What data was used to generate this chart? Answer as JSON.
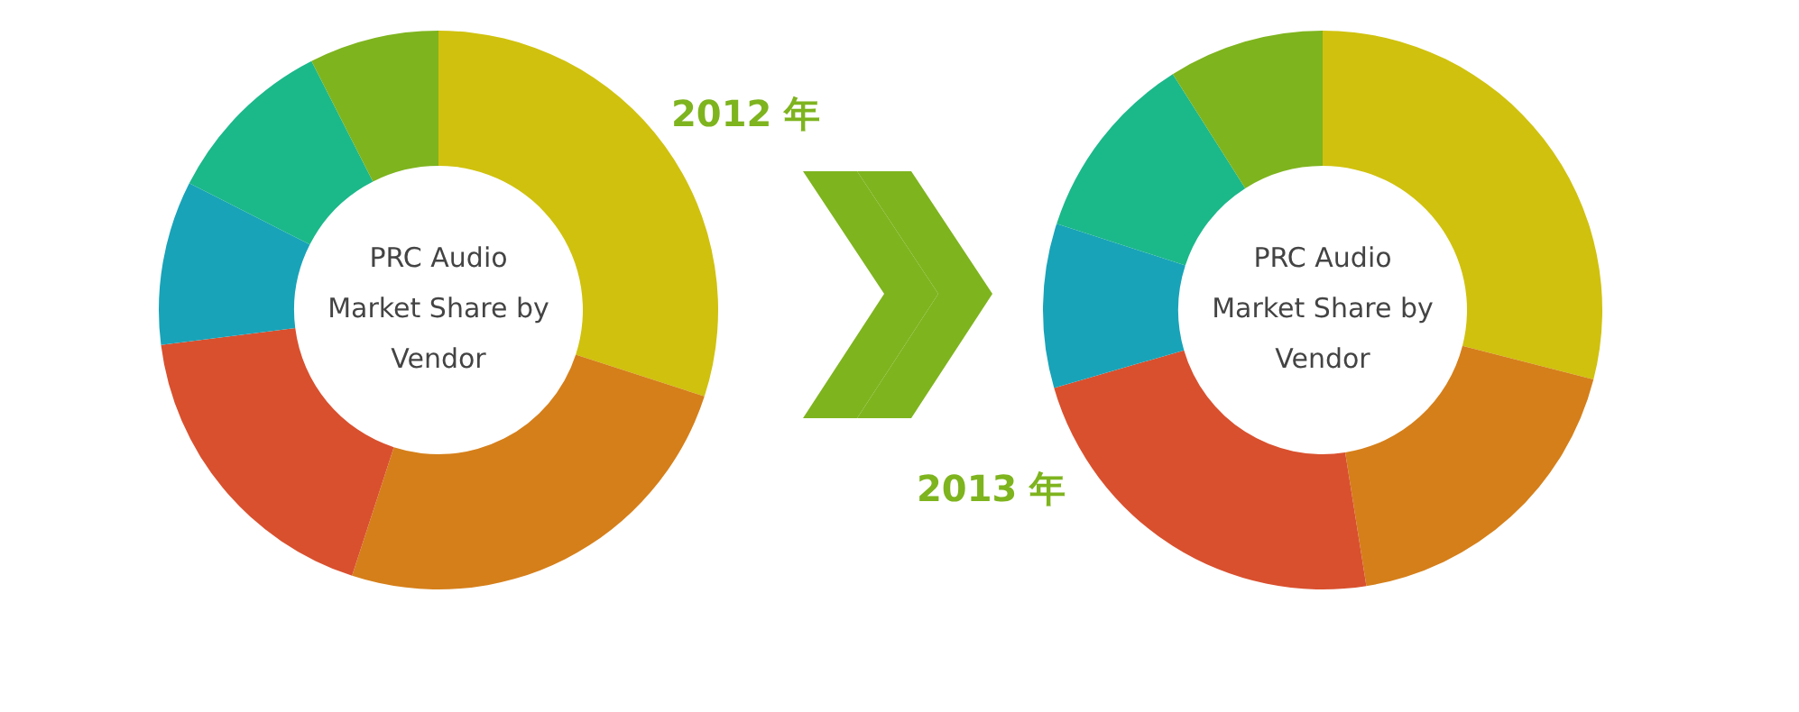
{
  "chart_data": [
    {
      "type": "donut",
      "title": "PRC Audio Market Share by Vendor",
      "subtitle": "2012 年",
      "categories": [
        null,
        null,
        null,
        null,
        null,
        null
      ],
      "values": [
        30,
        25,
        18,
        9.5,
        10,
        7.5
      ],
      "colors": [
        "#d0c10e",
        "#d57f1a",
        "#d9502e",
        "#18a3b8",
        "#1bb88a",
        "#7eb41e"
      ]
    },
    {
      "type": "donut",
      "title": "PRC Audio Market Share by Vendor",
      "subtitle": "2013 年",
      "categories": [
        null,
        null,
        null,
        null,
        null,
        null
      ],
      "values": [
        29,
        18.5,
        23,
        9.5,
        11,
        9
      ],
      "colors": [
        "#d0c10e",
        "#d57f1a",
        "#d9502e",
        "#18a3b8",
        "#1bb88a",
        "#7eb41e"
      ]
    }
  ]
}
